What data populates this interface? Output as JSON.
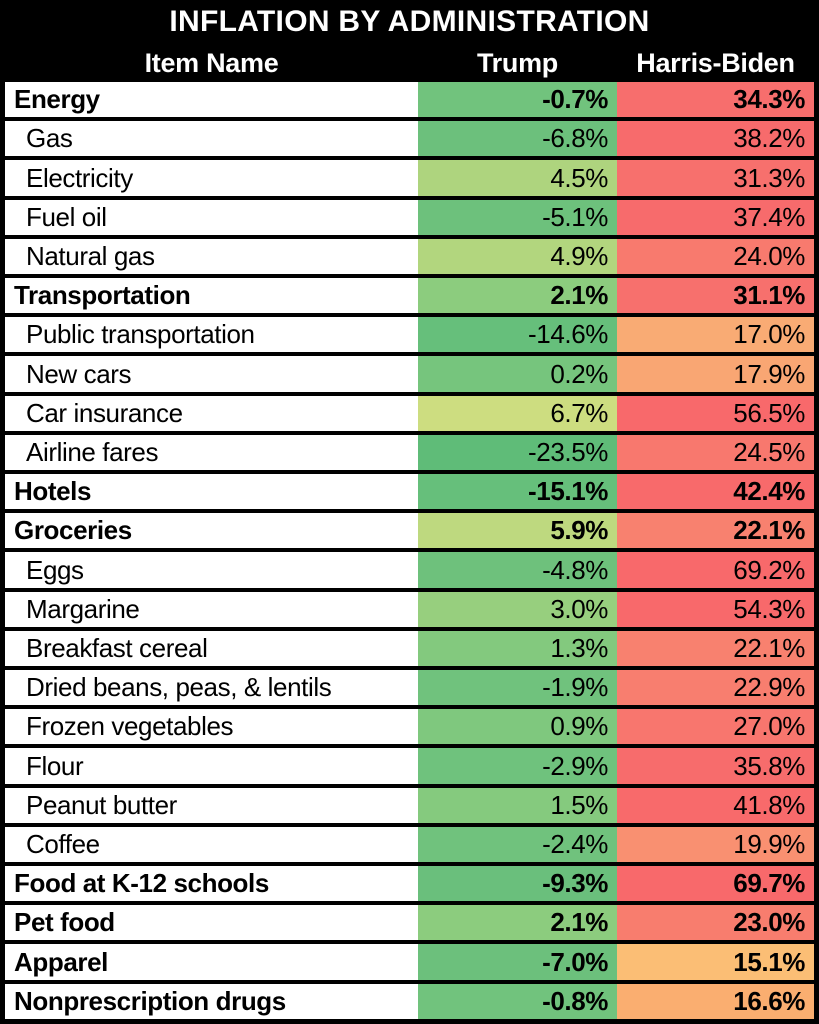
{
  "title": "INFLATION BY ADMINISTRATION",
  "columns": [
    "Item Name",
    "Trump",
    "Harris-Biden"
  ],
  "colors": {
    "frame_background": "#000000",
    "item_cell_background": "#FFFFFF",
    "header_text": "#FFFFFF",
    "cell_text": "#000000",
    "scale_green": "#63BE7B",
    "scale_yellow": "#FFEB84",
    "scale_red": "#F8696B"
  },
  "rows": [
    {
      "label": "Energy",
      "category": true,
      "trump_value": "-0.7%",
      "trump_color": "#71C37D",
      "harris_value": "34.3%",
      "harris_color": "#F76E6D"
    },
    {
      "label": "Gas",
      "category": false,
      "trump_value": "-6.8%",
      "trump_color": "#6CC07C",
      "harris_value": "38.2%",
      "harris_color": "#F76B6C"
    },
    {
      "label": "Electricity",
      "category": false,
      "trump_value": "4.5%",
      "trump_color": "#AED47E",
      "harris_value": "31.3%",
      "harris_color": "#F7706D"
    },
    {
      "label": "Fuel oil",
      "category": false,
      "trump_value": "-5.1%",
      "trump_color": "#6DC17C",
      "harris_value": "37.4%",
      "harris_color": "#F76B6C"
    },
    {
      "label": "Natural gas",
      "category": false,
      "trump_value": "4.9%",
      "trump_color": "#B2D67E",
      "harris_value": "24.0%",
      "harris_color": "#F87A6E"
    },
    {
      "label": "Transportation",
      "category": true,
      "trump_value": "2.1%",
      "trump_color": "#8CCC7E",
      "harris_value": "31.1%",
      "harris_color": "#F7706D"
    },
    {
      "label": "Public transportation",
      "category": false,
      "trump_value": "-14.6%",
      "trump_color": "#66BF7B",
      "harris_value": "17.0%",
      "harris_color": "#F9AB74"
    },
    {
      "label": "New cars",
      "category": false,
      "trump_value": "0.2%",
      "trump_color": "#76C57D",
      "harris_value": "17.9%",
      "harris_color": "#F9A673"
    },
    {
      "label": "Car insurance",
      "category": false,
      "trump_value": "6.7%",
      "trump_color": "#CDDD80",
      "harris_value": "56.5%",
      "harris_color": "#F8696B"
    },
    {
      "label": "Airline fares",
      "category": false,
      "trump_value": "-23.5%",
      "trump_color": "#5FBC78",
      "harris_value": "24.5%",
      "harris_color": "#F8786E"
    },
    {
      "label": "Hotels",
      "category": true,
      "trump_value": "-15.1%",
      "trump_color": "#66BF7B",
      "harris_value": "42.4%",
      "harris_color": "#F86A6B"
    },
    {
      "label": "Groceries",
      "category": true,
      "trump_value": "5.9%",
      "trump_color": "#BED97F",
      "harris_value": "22.1%",
      "harris_color": "#F8816F"
    },
    {
      "label": "Eggs",
      "category": false,
      "trump_value": "-4.8%",
      "trump_color": "#6EC17C",
      "harris_value": "69.2%",
      "harris_color": "#F8696B"
    },
    {
      "label": "Margarine",
      "category": false,
      "trump_value": "3.0%",
      "trump_color": "#97CF7E",
      "harris_value": "54.3%",
      "harris_color": "#F8696B"
    },
    {
      "label": "Breakfast cereal",
      "category": false,
      "trump_value": "1.3%",
      "trump_color": "#83C97E",
      "harris_value": "22.1%",
      "harris_color": "#F8816F"
    },
    {
      "label": "Dried beans, peas, & lentils",
      "category": false,
      "trump_value": "-1.9%",
      "trump_color": "#70C27D",
      "harris_value": "22.9%",
      "harris_color": "#F87E6F"
    },
    {
      "label": "Frozen vegetables",
      "category": false,
      "trump_value": "0.9%",
      "trump_color": "#7FC87E",
      "harris_value": "27.0%",
      "harris_color": "#F8766E"
    },
    {
      "label": "Flour",
      "category": false,
      "trump_value": "-2.9%",
      "trump_color": "#6FC27D",
      "harris_value": "35.8%",
      "harris_color": "#F76C6C"
    },
    {
      "label": "Peanut butter",
      "category": false,
      "trump_value": "1.5%",
      "trump_color": "#85CA7E",
      "harris_value": "41.8%",
      "harris_color": "#F86A6B"
    },
    {
      "label": "Coffee",
      "category": false,
      "trump_value": "-2.4%",
      "trump_color": "#70C27D",
      "harris_value": "19.9%",
      "harris_color": "#F99071"
    },
    {
      "label": "Food at K-12 schools",
      "category": true,
      "trump_value": "-9.3%",
      "trump_color": "#6ABF7C",
      "harris_value": "69.7%",
      "harris_color": "#F8696B"
    },
    {
      "label": "Pet food",
      "category": true,
      "trump_value": "2.1%",
      "trump_color": "#8CCC7E",
      "harris_value": "23.0%",
      "harris_color": "#F87D6E"
    },
    {
      "label": "Apparel",
      "category": true,
      "trump_value": "-7.0%",
      "trump_color": "#6CC07C",
      "harris_value": "15.1%",
      "harris_color": "#FBBE75"
    },
    {
      "label": "Nonprescription drugs",
      "category": true,
      "trump_value": "-0.8%",
      "trump_color": "#71C37D",
      "harris_value": "16.6%",
      "harris_color": "#FAAE70"
    }
  ],
  "chart_data": {
    "type": "table",
    "title": "INFLATION BY ADMINISTRATION",
    "columns": [
      "Item Name",
      "Trump",
      "Harris-Biden"
    ],
    "categories": [
      "Energy",
      "Gas",
      "Electricity",
      "Fuel oil",
      "Natural gas",
      "Transportation",
      "Public transportation",
      "New cars",
      "Car insurance",
      "Airline fares",
      "Hotels",
      "Groceries",
      "Eggs",
      "Margarine",
      "Breakfast cereal",
      "Dried beans, peas, & lentils",
      "Frozen vegetables",
      "Flour",
      "Peanut butter",
      "Coffee",
      "Food at K-12 schools",
      "Pet food",
      "Apparel",
      "Nonprescription drugs"
    ],
    "series": [
      {
        "name": "Trump",
        "unit": "%",
        "values": [
          -0.7,
          -6.8,
          4.5,
          -5.1,
          4.9,
          2.1,
          -14.6,
          0.2,
          6.7,
          -23.5,
          -15.1,
          5.9,
          -4.8,
          3.0,
          1.3,
          -1.9,
          0.9,
          -2.9,
          1.5,
          -2.4,
          -9.3,
          2.1,
          -7.0,
          -0.8
        ]
      },
      {
        "name": "Harris-Biden",
        "unit": "%",
        "values": [
          34.3,
          38.2,
          31.3,
          37.4,
          24.0,
          31.1,
          17.0,
          17.9,
          56.5,
          24.5,
          42.4,
          22.1,
          69.2,
          54.3,
          22.1,
          22.9,
          27.0,
          35.8,
          41.8,
          19.9,
          69.7,
          23.0,
          15.1,
          16.6
        ]
      }
    ],
    "bold_rows": [
      "Energy",
      "Transportation",
      "Hotels",
      "Groceries",
      "Food at K-12 schools",
      "Pet food",
      "Apparel",
      "Nonprescription drugs"
    ],
    "color_scale": {
      "low": "#63BE7B",
      "mid": "#FFEB84",
      "high": "#F8696B"
    },
    "value_range": [
      -23.5,
      69.7
    ]
  }
}
